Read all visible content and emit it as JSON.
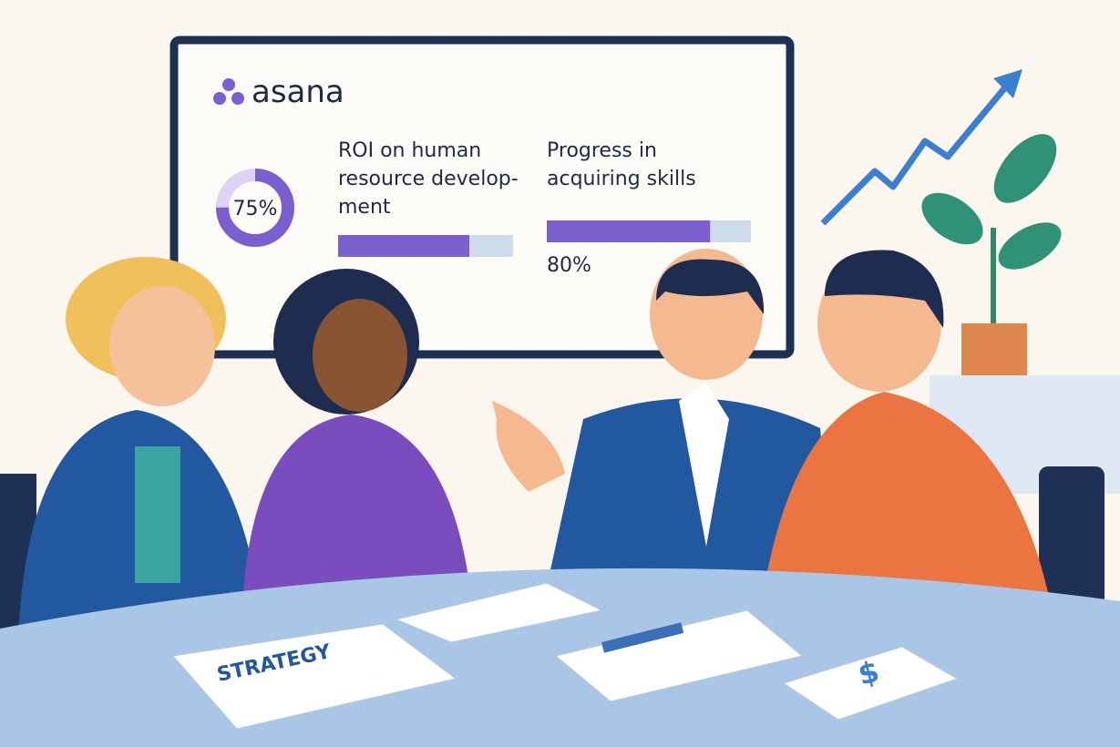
{
  "screen": {
    "logo": "asana",
    "metrics": [
      {
        "title_lines": [
          "ROI on human",
          "resource develop-",
          "ment"
        ],
        "value": 75,
        "label": "75%"
      },
      {
        "title_lines": [
          "Progress in",
          "acquiring skills"
        ],
        "value": 80,
        "label": "80%"
      }
    ]
  },
  "papers": {
    "strategy": "STRATEGY",
    "money": "$"
  }
}
